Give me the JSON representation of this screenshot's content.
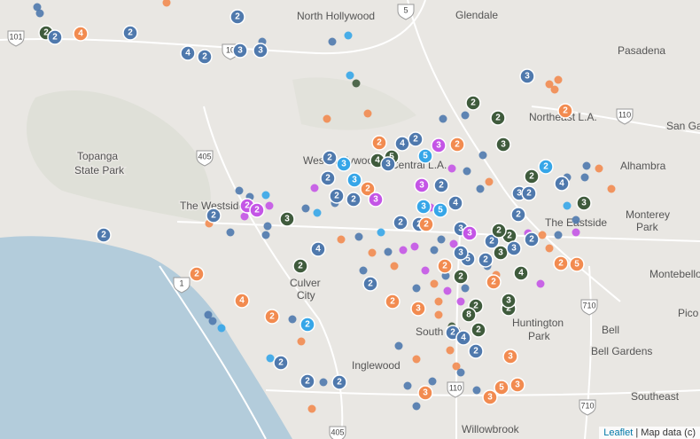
{
  "map": {
    "places": [
      "North Hollywood",
      "Glendale",
      "Pasadena",
      "Northeast L.A.",
      "Topanga",
      "State Park",
      "West Hollywood",
      "Central L.A.",
      "San Gab",
      "Alhambra",
      "The Westside",
      "The Eastside",
      "Monterey",
      "Park",
      "Culver",
      "City",
      "Montebello",
      "Huntington",
      "Park",
      "Pico",
      "Bell",
      "South L.A.",
      "Bell Gardens",
      "Inglewood",
      "Southeast",
      "Willowbrook"
    ],
    "highways": [
      "101",
      "5",
      "405",
      "110",
      "10",
      "1",
      "710",
      "110",
      "405",
      "710"
    ],
    "clusters": [
      2,
      2,
      4,
      2,
      2,
      4,
      2,
      3,
      3,
      3,
      2,
      2,
      3,
      2,
      2,
      2,
      4,
      2,
      5,
      3,
      5,
      4,
      2,
      3,
      3,
      2,
      2,
      2,
      4,
      2,
      3,
      2,
      3,
      2,
      2,
      3,
      2,
      3,
      2,
      2,
      2,
      3,
      3,
      3,
      5,
      4,
      2,
      2,
      2,
      3,
      3,
      2,
      2,
      3,
      2,
      5,
      2,
      3,
      2,
      3,
      2,
      2,
      4,
      2,
      2,
      2,
      2,
      4,
      2,
      2,
      5,
      2,
      3,
      2,
      8,
      2,
      3,
      2,
      2,
      4,
      2,
      2,
      4,
      2,
      2,
      2,
      2,
      2,
      3,
      3,
      3,
      5,
      3
    ],
    "attribution": {
      "link": "Leaflet",
      "text": "| Map data (c)"
    }
  }
}
